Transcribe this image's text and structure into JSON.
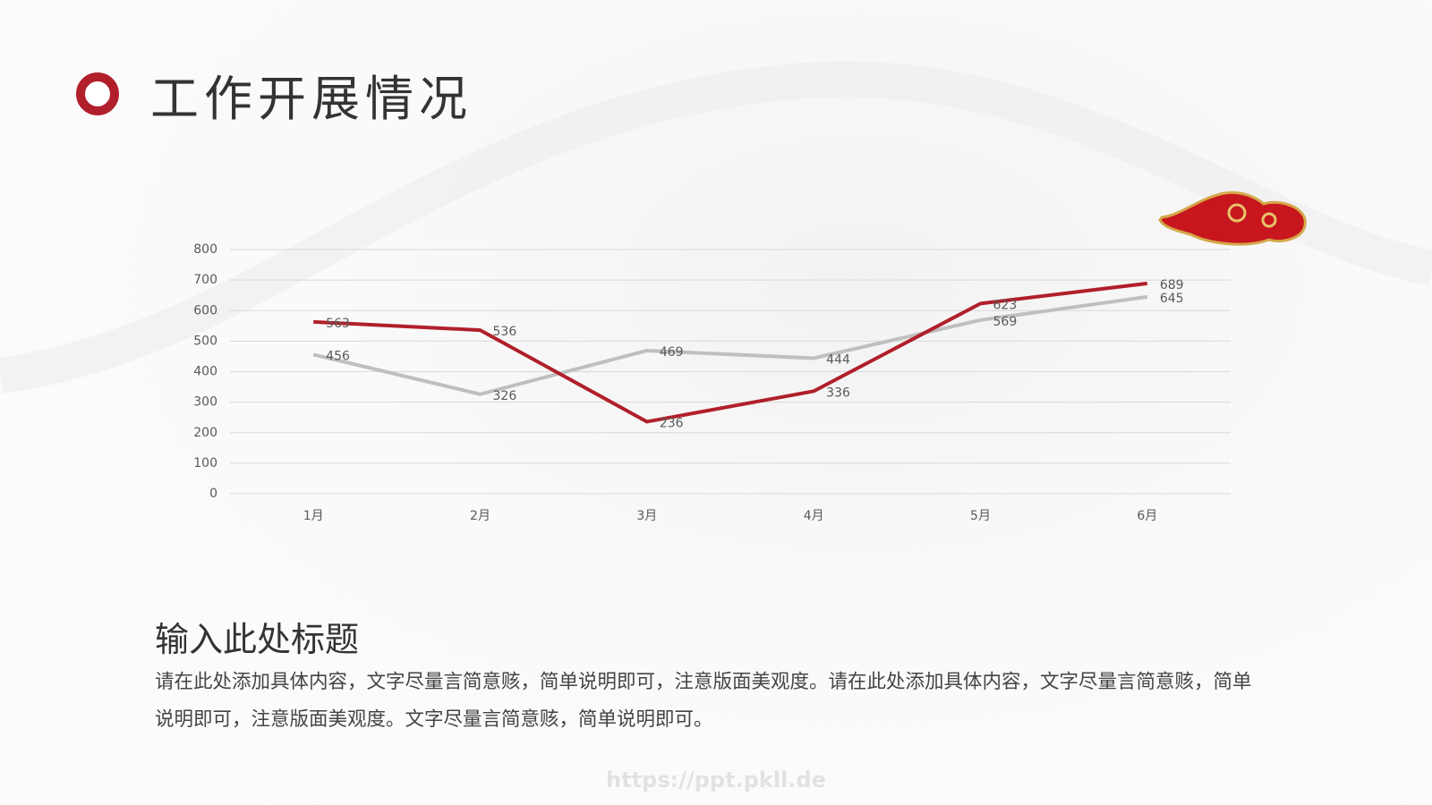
{
  "header": {
    "title": "工作开展情况"
  },
  "chart_data": {
    "type": "line",
    "categories": [
      "1月",
      "2月",
      "3月",
      "4月",
      "5月",
      "6月"
    ],
    "series": [
      {
        "color": "#b01f2a",
        "values": [
          563,
          536,
          236,
          336,
          623,
          689
        ]
      },
      {
        "color": "#bfbfbf",
        "values": [
          456,
          326,
          469,
          444,
          569,
          645
        ]
      }
    ],
    "ylim": [
      0,
      800
    ],
    "yticks": [
      0,
      100,
      200,
      300,
      400,
      500,
      600,
      700,
      800
    ],
    "grid": true
  },
  "section": {
    "heading": "输入此处标题",
    "body": "请在此处添加具体内容，文字尽量言简意赅，简单说明即可，注意版面美观度。请在此处添加具体内容，文字尽量言简意赅，简单说明即可，注意版面美观度。文字尽量言简意赅，简单说明即可。"
  },
  "watermark": "https://ppt.pkll.de"
}
